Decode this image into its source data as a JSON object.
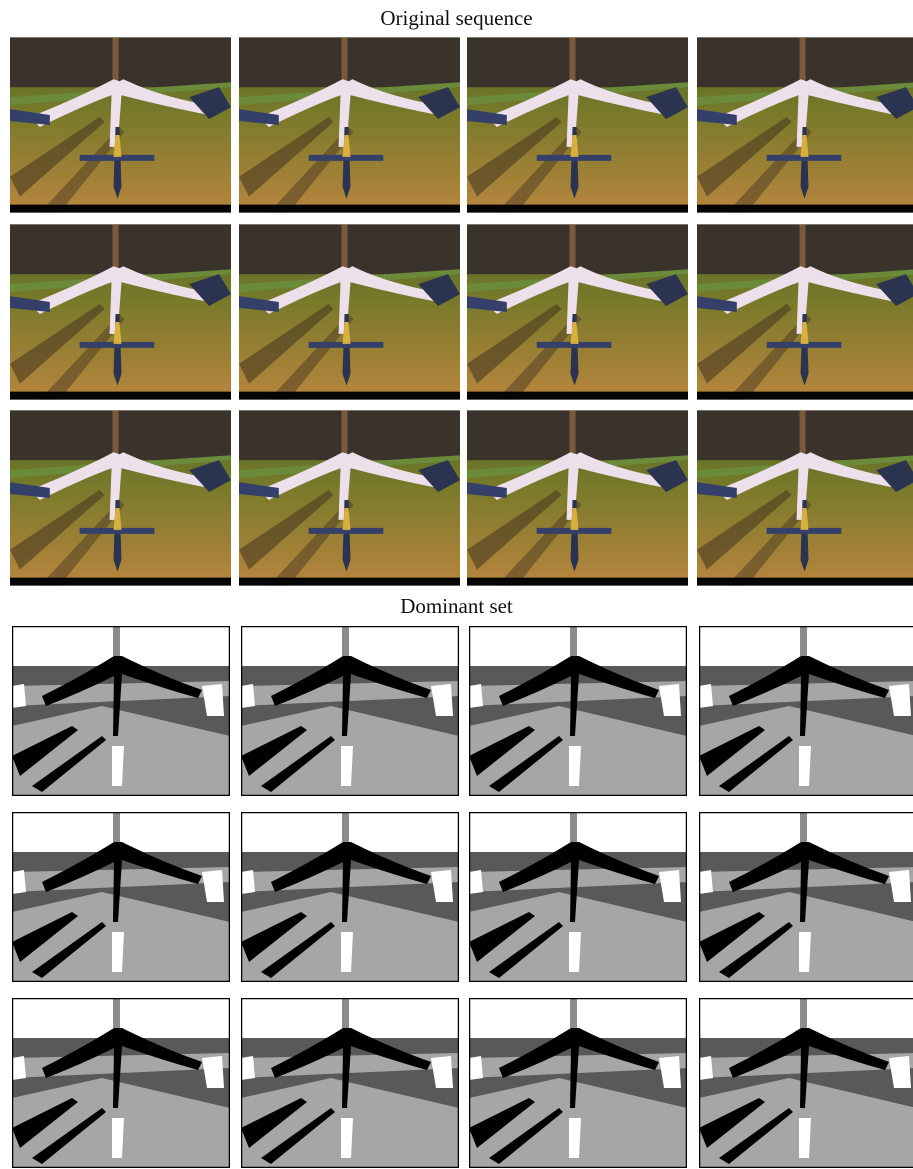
{
  "figure": {
    "sections": [
      {
        "title": "Original sequence"
      },
      {
        "title": "Dominant set"
      }
    ]
  }
}
